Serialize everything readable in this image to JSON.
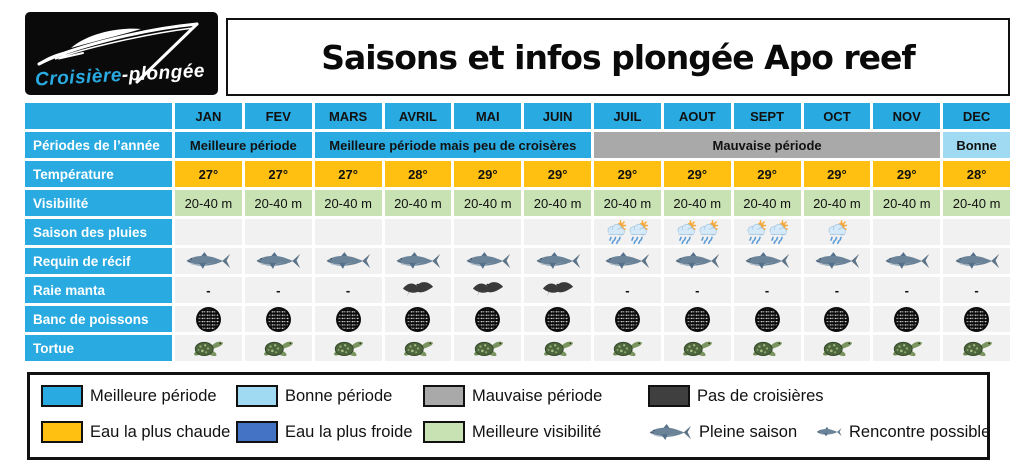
{
  "brand": {
    "name_blue": "Croisière",
    "name_rest": "-plongée"
  },
  "title": "Saisons et infos plongée Apo reef",
  "months": [
    "JAN",
    "FEV",
    "MARS",
    "AVRIL",
    "MAI",
    "JUIN",
    "JUIL",
    "AOUT",
    "SEPT",
    "OCT",
    "NOV",
    "DEC"
  ],
  "rows": {
    "periods": {
      "label": "Périodes de l’année",
      "spans": [
        {
          "text": "Meilleure période",
          "cols": 2,
          "color": "#29ABE2"
        },
        {
          "text": "Meilleure période mais peu de croisères",
          "cols": 4,
          "color": "#29ABE2"
        },
        {
          "text": "Mauvaise période",
          "cols": 5,
          "color": "#A9A9A9"
        },
        {
          "text": "Bonne",
          "cols": 1,
          "color": "#9FD9F2"
        }
      ]
    },
    "temperature": {
      "label": "Température",
      "values": [
        "27°",
        "27°",
        "27°",
        "28°",
        "29°",
        "29°",
        "29°",
        "29°",
        "29°",
        "29°",
        "29°",
        "28°"
      ]
    },
    "visibility": {
      "label": "Visibilité",
      "values": [
        "20-40 m",
        "20-40 m",
        "20-40 m",
        "20-40 m",
        "20-40 m",
        "20-40 m",
        "20-40 m",
        "20-40 m",
        "20-40 m",
        "20-40 m",
        "20-40 m",
        "20-40 m"
      ]
    },
    "rain": {
      "label": "Saison des pluies",
      "icon": "rain-sun-icon",
      "counts": [
        0,
        0,
        0,
        0,
        0,
        0,
        2,
        2,
        2,
        1,
        0,
        0
      ]
    },
    "reef_shark": {
      "label": "Requin de récif",
      "icon": "shark-icon",
      "values": [
        1,
        1,
        1,
        1,
        1,
        1,
        1,
        1,
        1,
        1,
        1,
        1
      ]
    },
    "manta": {
      "label": "Raie manta",
      "icon": "manta-icon",
      "values": [
        "-",
        "-",
        "-",
        "icon",
        "icon",
        "icon",
        "-",
        "-",
        "-",
        "-",
        "-",
        "-"
      ]
    },
    "fish_school": {
      "label": "Banc de poissons",
      "icon": "fish-school-icon",
      "values": [
        1,
        1,
        1,
        1,
        1,
        1,
        1,
        1,
        1,
        1,
        1,
        1
      ]
    },
    "turtle": {
      "label": "Tortue",
      "icon": "turtle-icon",
      "values": [
        1,
        1,
        1,
        1,
        1,
        1,
        1,
        1,
        1,
        1,
        1,
        1
      ]
    }
  },
  "legend": {
    "items": [
      {
        "swatch": "#29ABE2",
        "label": "Meilleure période",
        "row": 1,
        "col": 1
      },
      {
        "swatch": "#9FD9F2",
        "label": "Bonne période",
        "row": 1,
        "col": 2
      },
      {
        "swatch": "#A9A9A9",
        "label": "Mauvaise période",
        "row": 1,
        "col": 3
      },
      {
        "swatch": "#3F3F3F",
        "label": "Pas de croisières",
        "row": 1,
        "col": 4
      },
      {
        "swatch": "#FFC011",
        "label": "Eau la plus chaude",
        "row": 2,
        "col": 1
      },
      {
        "swatch": "#4472C4",
        "label": "Eau la plus froide",
        "row": 2,
        "col": 2
      },
      {
        "swatch": "#C9E2B4",
        "label": "Meilleure visibilité",
        "row": 2,
        "col": 3
      },
      {
        "icon": "shark-icon",
        "label": "Pleine saison",
        "row": 2,
        "col": 4
      },
      {
        "icon": "shark-small-icon",
        "label": "Rencontre possible",
        "row": 2,
        "col": 5
      }
    ]
  },
  "colors": {
    "best_period": "#29ABE2",
    "good_period": "#9FD9F2",
    "bad_period": "#A9A9A9",
    "no_cruise": "#3F3F3F",
    "warmest": "#FFC011",
    "coldest": "#4472C4",
    "best_visibility": "#C9E2B4",
    "empty_cell": "#F1F1F1"
  }
}
